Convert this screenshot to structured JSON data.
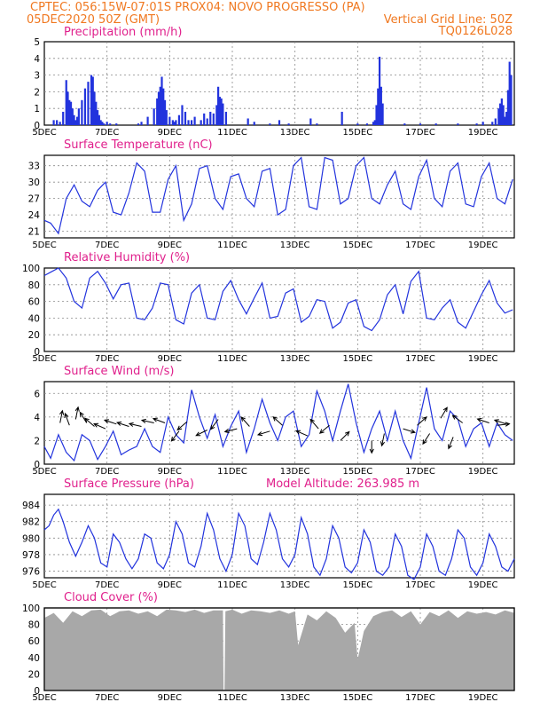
{
  "header": {
    "line1_left": "CPTEC:    056:15W-07:01S    PROX04: NOVO PROGRESSO (PA)",
    "line2_left": "05DEC2020 50Z (GMT)",
    "line2_right": "Vertical Grid Line: 50Z",
    "line3_right": "TQ0126L028"
  },
  "colors": {
    "header": "#f07820",
    "title": "#e0208c",
    "series": "#2233dd",
    "cloud": "#a8a8a8"
  },
  "x_axis": {
    "start_day": 5,
    "end_day": 20,
    "ticks": [
      {
        "day": 5,
        "label": "5DEC"
      },
      {
        "day": 7,
        "label": "7DEC"
      },
      {
        "day": 9,
        "label": "9DEC"
      },
      {
        "day": 11,
        "label": "11DEC"
      },
      {
        "day": 13,
        "label": "13DEC"
      },
      {
        "day": 15,
        "label": "15DEC"
      },
      {
        "day": 17,
        "label": "17DEC"
      },
      {
        "day": 19,
        "label": "19DEC"
      }
    ]
  },
  "chart_data": [
    {
      "id": "precip",
      "type": "bar",
      "title": "Precipitation (mm/h)",
      "ylim": [
        0,
        5
      ],
      "yticks": [
        0,
        1,
        2,
        3,
        4,
        5
      ],
      "grid": true,
      "x": [
        5.3,
        5.4,
        5.5,
        5.6,
        5.7,
        5.75,
        5.8,
        5.85,
        5.9,
        5.95,
        6.0,
        6.05,
        6.1,
        6.2,
        6.3,
        6.4,
        6.5,
        6.55,
        6.6,
        6.65,
        6.7,
        6.75,
        6.8,
        6.85,
        6.9,
        7.0,
        7.1,
        7.3,
        8.0,
        8.1,
        8.3,
        8.5,
        8.6,
        8.65,
        8.7,
        8.75,
        8.8,
        8.85,
        8.9,
        9.0,
        9.1,
        9.15,
        9.2,
        9.3,
        9.4,
        9.5,
        9.6,
        9.7,
        9.8,
        10.0,
        10.1,
        10.2,
        10.3,
        10.4,
        10.5,
        10.55,
        10.6,
        10.65,
        10.7,
        10.8,
        11.5,
        11.7,
        12.2,
        12.5,
        12.8,
        13.5,
        13.7,
        14.5,
        15.0,
        15.3,
        15.5,
        15.55,
        15.6,
        15.65,
        15.7,
        15.75,
        15.8,
        16.5,
        17.0,
        17.5,
        18.2,
        18.8,
        19.0,
        19.3,
        19.4,
        19.5,
        19.55,
        19.6,
        19.65,
        19.7,
        19.75,
        19.8,
        19.85,
        19.9
      ],
      "values": [
        0.3,
        0.3,
        0.2,
        0.8,
        2.7,
        2.0,
        1.5,
        1.4,
        1.0,
        0.6,
        0.3,
        0.5,
        1.0,
        1.5,
        2.2,
        2.6,
        3.0,
        2.9,
        2.0,
        1.4,
        0.9,
        0.6,
        0.3,
        0.2,
        0.1,
        0.2,
        0.1,
        0.1,
        0.1,
        0.2,
        0.5,
        1.0,
        1.6,
        2.0,
        2.3,
        2.9,
        2.2,
        1.5,
        0.9,
        0.5,
        0.3,
        0.2,
        0.3,
        0.6,
        1.2,
        0.8,
        0.3,
        0.3,
        0.5,
        0.3,
        0.7,
        0.4,
        0.8,
        0.7,
        1.2,
        2.3,
        1.7,
        1.6,
        1.3,
        0.8,
        0.4,
        0.2,
        0.1,
        0.3,
        0.1,
        0.4,
        0.1,
        0.8,
        0.1,
        0.1,
        0.2,
        0.3,
        1.2,
        2.2,
        4.1,
        2.3,
        1.3,
        0.1,
        0.1,
        0.1,
        0.1,
        0.1,
        0.2,
        0.2,
        0.4,
        1.0,
        1.3,
        1.6,
        1.2,
        0.5,
        0.8,
        2.1,
        3.8,
        3.0
      ]
    },
    {
      "id": "temp",
      "type": "line",
      "title": "Surface Temperature (nC)",
      "ylim": [
        19.8,
        34.9
      ],
      "yticks": [
        21,
        24,
        27,
        30,
        33
      ],
      "grid": true,
      "x": [
        5.0,
        5.2,
        5.45,
        5.7,
        5.95,
        6.2,
        6.45,
        6.7,
        6.95,
        7.2,
        7.45,
        7.7,
        7.95,
        8.2,
        8.45,
        8.7,
        8.95,
        9.2,
        9.45,
        9.7,
        9.95,
        10.2,
        10.45,
        10.7,
        10.95,
        11.2,
        11.45,
        11.7,
        11.95,
        12.2,
        12.45,
        12.7,
        12.95,
        13.2,
        13.45,
        13.7,
        13.95,
        14.2,
        14.45,
        14.7,
        14.95,
        15.2,
        15.45,
        15.7,
        15.95,
        16.2,
        16.45,
        16.7,
        16.95,
        17.2,
        17.45,
        17.7,
        17.95,
        18.2,
        18.45,
        18.7,
        18.95,
        19.2,
        19.45,
        19.7,
        19.95
      ],
      "values": [
        23.0,
        22.5,
        20.6,
        27.0,
        29.5,
        26.5,
        25.5,
        28.5,
        30.0,
        24.5,
        24.0,
        28.0,
        33.5,
        32.0,
        24.5,
        24.5,
        30.5,
        33.0,
        23.0,
        26.0,
        32.5,
        33.0,
        27.0,
        25.0,
        31.0,
        31.5,
        27.0,
        25.5,
        32.0,
        32.5,
        24.0,
        25.0,
        33.0,
        34.5,
        25.5,
        25.0,
        34.5,
        34.0,
        26.0,
        27.0,
        33.0,
        34.5,
        27.0,
        26.0,
        29.5,
        32.0,
        26.0,
        25.0,
        31.0,
        34.0,
        27.0,
        25.5,
        32.0,
        33.5,
        26.0,
        25.5,
        31.0,
        33.5,
        27.0,
        26.0,
        30.5
      ]
    },
    {
      "id": "rh",
      "type": "line",
      "title": "Relative Humidity (%)",
      "ylim": [
        0,
        100
      ],
      "yticks": [
        0,
        20,
        40,
        60,
        80,
        100
      ],
      "grid": true,
      "x": [
        5.0,
        5.2,
        5.45,
        5.7,
        5.95,
        6.2,
        6.45,
        6.7,
        6.95,
        7.2,
        7.45,
        7.7,
        7.95,
        8.2,
        8.45,
        8.7,
        8.95,
        9.2,
        9.45,
        9.7,
        9.95,
        10.2,
        10.45,
        10.7,
        10.95,
        11.2,
        11.45,
        11.7,
        11.95,
        12.2,
        12.45,
        12.7,
        12.95,
        13.2,
        13.45,
        13.7,
        13.95,
        14.2,
        14.45,
        14.7,
        14.95,
        15.2,
        15.45,
        15.7,
        15.95,
        16.2,
        16.45,
        16.7,
        16.95,
        17.2,
        17.45,
        17.7,
        17.95,
        18.2,
        18.45,
        18.7,
        18.95,
        19.2,
        19.45,
        19.7,
        19.95
      ],
      "values": [
        91,
        95,
        100,
        88,
        60,
        52,
        88,
        96,
        82,
        63,
        80,
        82,
        40,
        38,
        52,
        82,
        80,
        38,
        33,
        70,
        80,
        40,
        38,
        72,
        85,
        62,
        45,
        64,
        82,
        40,
        42,
        70,
        75,
        35,
        42,
        62,
        60,
        28,
        35,
        58,
        62,
        30,
        25,
        38,
        68,
        80,
        45,
        84,
        96,
        40,
        38,
        52,
        62,
        35,
        28,
        48,
        68,
        85,
        58,
        46,
        50
      ]
    },
    {
      "id": "wind",
      "type": "line",
      "title": "Surface Wind (m/s)",
      "ylim": [
        0,
        7
      ],
      "yticks": [
        0,
        2,
        4,
        6
      ],
      "grid": true,
      "x": [
        5.0,
        5.2,
        5.45,
        5.7,
        5.95,
        6.2,
        6.45,
        6.7,
        6.95,
        7.2,
        7.45,
        7.7,
        7.95,
        8.2,
        8.45,
        8.7,
        8.95,
        9.2,
        9.45,
        9.7,
        9.95,
        10.2,
        10.45,
        10.7,
        10.95,
        11.2,
        11.45,
        11.7,
        11.95,
        12.2,
        12.45,
        12.7,
        12.95,
        13.2,
        13.45,
        13.7,
        13.95,
        14.2,
        14.45,
        14.7,
        14.95,
        15.2,
        15.45,
        15.7,
        15.95,
        16.2,
        16.45,
        16.7,
        16.95,
        17.2,
        17.45,
        17.7,
        17.95,
        18.2,
        18.45,
        18.7,
        18.95,
        19.2,
        19.45,
        19.7,
        19.95
      ],
      "values": [
        1.5,
        0.5,
        2.5,
        1.0,
        0.3,
        2.5,
        2.0,
        0.4,
        1.5,
        2.8,
        0.8,
        1.2,
        1.5,
        3.0,
        1.5,
        1.0,
        4.0,
        2.5,
        1.8,
        6.3,
        4.0,
        2.2,
        4.2,
        1.5,
        3.2,
        4.5,
        1.0,
        3.0,
        5.5,
        3.5,
        2.0,
        4.0,
        4.5,
        1.5,
        2.5,
        6.2,
        4.5,
        2.0,
        4.5,
        6.8,
        3.5,
        1.0,
        3.0,
        4.5,
        2.0,
        4.5,
        2.0,
        0.5,
        3.5,
        6.5,
        3.0,
        2.0,
        4.5,
        3.8,
        1.5,
        3.0,
        3.5,
        1.5,
        3.5,
        2.5,
        2.0
      ],
      "arrows": [
        {
          "day": 5.5,
          "speed": 3.5,
          "u": 0.2,
          "v": 1.0
        },
        {
          "day": 5.8,
          "speed": 3.3,
          "u": -0.3,
          "v": 0.8
        },
        {
          "day": 6.0,
          "speed": 3.8,
          "u": 0.2,
          "v": 1.0
        },
        {
          "day": 6.35,
          "speed": 3.5,
          "u": -0.5,
          "v": 0.8
        },
        {
          "day": 6.6,
          "speed": 3.2,
          "u": -0.7,
          "v": 0.6
        },
        {
          "day": 6.95,
          "speed": 3.0,
          "u": -0.9,
          "v": 0.4
        },
        {
          "day": 7.3,
          "speed": 3.4,
          "u": -0.9,
          "v": 0.3
        },
        {
          "day": 7.7,
          "speed": 3.2,
          "u": -0.9,
          "v": 0.3
        },
        {
          "day": 8.1,
          "speed": 3.2,
          "u": -0.9,
          "v": 0.2
        },
        {
          "day": 8.5,
          "speed": 3.5,
          "u": -0.9,
          "v": 0.2
        },
        {
          "day": 8.85,
          "speed": 3.5,
          "u": -0.8,
          "v": 0.3
        },
        {
          "day": 9.3,
          "speed": 2.8,
          "u": -1.0,
          "v": -1.3
        },
        {
          "day": 9.55,
          "speed": 3.6,
          "u": -0.8,
          "v": -0.7
        },
        {
          "day": 10.2,
          "speed": 2.9,
          "u": -1.0,
          "v": -0.5
        },
        {
          "day": 10.55,
          "speed": 3.8,
          "u": -0.6,
          "v": -0.8
        },
        {
          "day": 11.15,
          "speed": 3.0,
          "u": -1.2,
          "v": -0.3
        },
        {
          "day": 11.55,
          "speed": 3.2,
          "u": -0.8,
          "v": 0.9
        },
        {
          "day": 12.2,
          "speed": 2.8,
          "u": -1.3,
          "v": -0.4
        },
        {
          "day": 12.6,
          "speed": 3.3,
          "u": -1.0,
          "v": 0.9
        },
        {
          "day": 13.4,
          "speed": 2.4,
          "u": -0.9,
          "v": 0.4
        },
        {
          "day": 13.75,
          "speed": 3.0,
          "u": -0.6,
          "v": 0.7
        },
        {
          "day": 14.1,
          "speed": 3.3,
          "u": -1.2,
          "v": -1.0
        },
        {
          "day": 14.45,
          "speed": 2.0,
          "u": 0.9,
          "v": 0.9
        },
        {
          "day": 15.45,
          "speed": 2.0,
          "u": 0.0,
          "v": -1.0
        },
        {
          "day": 15.85,
          "speed": 2.6,
          "u": -0.2,
          "v": -1.0
        },
        {
          "day": 16.45,
          "speed": 3.0,
          "u": 1.3,
          "v": -0.4
        },
        {
          "day": 16.9,
          "speed": 3.3,
          "u": 0.8,
          "v": 0.7
        },
        {
          "day": 17.3,
          "speed": 2.6,
          "u": -0.9,
          "v": -1.4
        },
        {
          "day": 17.65,
          "speed": 3.9,
          "u": 0.6,
          "v": 1.0
        },
        {
          "day": 18.05,
          "speed": 2.3,
          "u": -0.4,
          "v": -1.0
        },
        {
          "day": 18.35,
          "speed": 3.5,
          "u": -0.8,
          "v": 0.6
        },
        {
          "day": 19.2,
          "speed": 3.5,
          "u": -0.9,
          "v": 0.3
        },
        {
          "day": 19.45,
          "speed": 3.3,
          "u": 0.9,
          "v": 0.1
        },
        {
          "day": 19.75,
          "speed": 3.4,
          "u": -0.9,
          "v": 0.3
        }
      ]
    },
    {
      "id": "pres",
      "type": "line",
      "title": "Surface Pressure (hPa)",
      "annotation": "Model Altitude: 263.985 m",
      "ylim": [
        975.2,
        985.3
      ],
      "yticks": [
        976,
        978,
        980,
        982,
        984
      ],
      "grid": true,
      "x": [
        5.0,
        5.15,
        5.3,
        5.45,
        5.6,
        5.8,
        6.0,
        6.2,
        6.4,
        6.6,
        6.8,
        7.0,
        7.2,
        7.4,
        7.6,
        7.8,
        8.0,
        8.2,
        8.4,
        8.6,
        8.8,
        9.0,
        9.2,
        9.4,
        9.6,
        9.8,
        10.0,
        10.2,
        10.4,
        10.6,
        10.8,
        11.0,
        11.2,
        11.4,
        11.6,
        11.8,
        12.0,
        12.2,
        12.4,
        12.6,
        12.8,
        13.0,
        13.2,
        13.4,
        13.6,
        13.8,
        14.0,
        14.2,
        14.4,
        14.6,
        14.8,
        15.0,
        15.2,
        15.4,
        15.6,
        15.8,
        16.0,
        16.2,
        16.4,
        16.6,
        16.8,
        17.0,
        17.2,
        17.4,
        17.6,
        17.8,
        18.0,
        18.2,
        18.4,
        18.6,
        18.8,
        19.0,
        19.2,
        19.4,
        19.6,
        19.8,
        20.0
      ],
      "values": [
        981.0,
        981.5,
        982.8,
        983.5,
        982.0,
        979.5,
        977.8,
        979.5,
        981.5,
        980.0,
        977.0,
        976.5,
        980.5,
        979.5,
        977.5,
        976.3,
        977.5,
        980.5,
        980.0,
        977.0,
        976.3,
        978.0,
        982.0,
        980.5,
        977.0,
        976.5,
        979.0,
        983.0,
        981.0,
        977.5,
        976.0,
        978.0,
        983.0,
        981.5,
        977.5,
        976.8,
        979.5,
        983.0,
        981.0,
        977.5,
        976.5,
        978.0,
        982.5,
        980.5,
        976.5,
        975.5,
        977.5,
        981.5,
        980.0,
        976.5,
        975.8,
        977.0,
        981.0,
        979.5,
        976.0,
        975.5,
        976.5,
        980.5,
        979.0,
        975.5,
        975.0,
        976.5,
        980.5,
        979.0,
        976.0,
        975.5,
        977.5,
        981.0,
        980.0,
        976.5,
        975.5,
        977.0,
        980.5,
        979.0,
        976.5,
        976.0,
        977.5
      ]
    },
    {
      "id": "cloud",
      "type": "area",
      "title": "Cloud Cover (%)",
      "ylim": [
        0,
        100
      ],
      "yticks": [
        0,
        20,
        40,
        60,
        80,
        100
      ],
      "grid": true,
      "x": [
        5.0,
        5.3,
        5.6,
        5.9,
        6.2,
        6.5,
        6.8,
        7.1,
        7.4,
        7.7,
        8.0,
        8.3,
        8.6,
        8.9,
        9.2,
        9.5,
        9.8,
        10.1,
        10.4,
        10.7,
        10.72,
        10.75,
        10.78,
        11.0,
        11.3,
        11.6,
        11.9,
        12.2,
        12.5,
        12.8,
        13.0,
        13.1,
        13.4,
        13.7,
        14.0,
        14.3,
        14.6,
        14.9,
        15.0,
        15.1,
        15.2,
        15.5,
        15.8,
        16.1,
        16.4,
        16.7,
        17.0,
        17.3,
        17.6,
        17.9,
        18.2,
        18.5,
        18.8,
        19.1,
        19.4,
        19.7,
        20.0
      ],
      "values": [
        88,
        94,
        82,
        96,
        90,
        97,
        98,
        90,
        96,
        97,
        93,
        96,
        90,
        98,
        97,
        95,
        98,
        94,
        97,
        97,
        0,
        0,
        96,
        98,
        93,
        97,
        96,
        94,
        97,
        93,
        96,
        55,
        92,
        85,
        96,
        88,
        70,
        82,
        38,
        55,
        72,
        90,
        95,
        97,
        89,
        96,
        80,
        95,
        90,
        97,
        88,
        96,
        93,
        95,
        92,
        97,
        94
      ]
    }
  ]
}
